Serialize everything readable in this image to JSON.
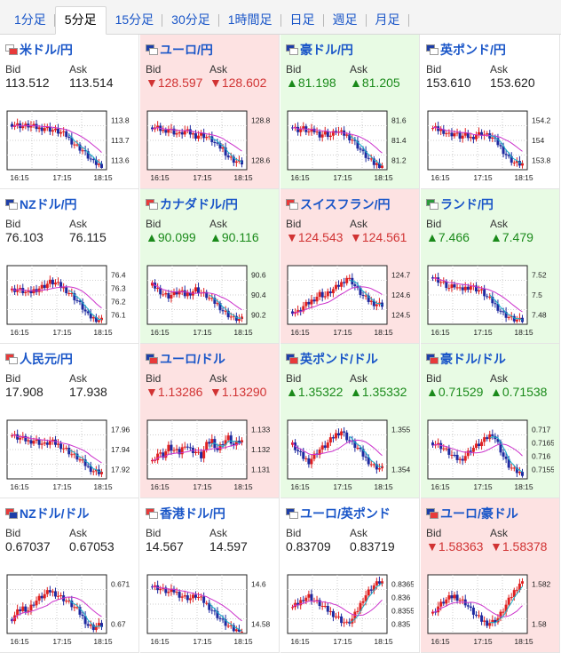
{
  "tabs": [
    "1分足",
    "5分足",
    "15分足",
    "30分足",
    "1時間足",
    "日足",
    "週足",
    "月足"
  ],
  "active_tab": 1,
  "labels": {
    "bid": "Bid",
    "ask": "Ask"
  },
  "x_ticks": [
    "16:15",
    "17:15",
    "18:15"
  ],
  "colors": {
    "up": "#1a8a1a",
    "down": "#d13333",
    "candle_up": "#e02020",
    "candle_down": "#1e2aa0",
    "ma_slow": "#cc33cc",
    "ma_fast": "#19b3c8"
  },
  "pairs": [
    {
      "name": "米ドル/円",
      "dir": "neutral",
      "bid": "113.512",
      "ask": "113.514",
      "arrow": "",
      "flags": [
        "#ffffff",
        "#e83a3a"
      ],
      "yticks": [
        "113.8",
        "113.7",
        "113.6"
      ],
      "ylim": [
        113.5,
        113.9
      ]
    },
    {
      "name": "ユーロ/円",
      "dir": "down",
      "bid": "128.597",
      "ask": "128.602",
      "arrow": "▼",
      "flags": [
        "#1e3fa8",
        "#ffffff"
      ],
      "yticks": [
        "128.8",
        "128.6"
      ],
      "ylim": [
        128.55,
        128.95
      ]
    },
    {
      "name": "豪ドル/円",
      "dir": "up",
      "bid": "81.198",
      "ask": "81.205",
      "arrow": "▲",
      "flags": [
        "#1e3fa8",
        "#ffffff"
      ],
      "yticks": [
        "81.6",
        "81.4",
        "81.2"
      ],
      "ylim": [
        81.15,
        81.7
      ]
    },
    {
      "name": "英ポンド/円",
      "dir": "neutral",
      "bid": "153.610",
      "ask": "153.620",
      "arrow": "",
      "flags": [
        "#1e3fa8",
        "#ffffff"
      ],
      "yticks": [
        "154.2",
        "154",
        "153.8"
      ],
      "ylim": [
        153.55,
        154.3
      ]
    },
    {
      "name": "NZドル/円",
      "dir": "neutral",
      "bid": "76.103",
      "ask": "76.115",
      "arrow": "",
      "flags": [
        "#1e3fa8",
        "#ffffff"
      ],
      "yticks": [
        "76.4",
        "76.3",
        "76.2",
        "76.1"
      ],
      "ylim": [
        76.05,
        76.45
      ]
    },
    {
      "name": "カナダドル/円",
      "dir": "up",
      "bid": "90.099",
      "ask": "90.116",
      "arrow": "▲",
      "flags": [
        "#e83a3a",
        "#ffffff"
      ],
      "yticks": [
        "90.6",
        "90.4",
        "90.2"
      ],
      "ylim": [
        90.05,
        90.7
      ]
    },
    {
      "name": "スイスフラン/円",
      "dir": "down",
      "bid": "124.543",
      "ask": "124.561",
      "arrow": "▼",
      "flags": [
        "#e83a3a",
        "#ffffff"
      ],
      "yticks": [
        "124.7",
        "124.6",
        "124.5"
      ],
      "ylim": [
        124.45,
        124.75
      ]
    },
    {
      "name": "ランド/円",
      "dir": "up",
      "bid": "7.466",
      "ask": "7.479",
      "arrow": "▲",
      "flags": [
        "#2a9a3a",
        "#ffffff"
      ],
      "yticks": [
        "7.52",
        "7.5",
        "7.48"
      ],
      "ylim": [
        7.46,
        7.54
      ]
    },
    {
      "name": "人民元/円",
      "dir": "neutral",
      "bid": "17.908",
      "ask": "17.938",
      "arrow": "",
      "flags": [
        "#e83a3a",
        "#ffffff"
      ],
      "yticks": [
        "17.96",
        "17.94",
        "17.92"
      ],
      "ylim": [
        17.9,
        17.97
      ]
    },
    {
      "name": "ユーロ/ドル",
      "dir": "down",
      "bid": "1.13286",
      "ask": "1.13290",
      "arrow": "▼",
      "flags": [
        "#1e3fa8",
        "#e83a3a"
      ],
      "yticks": [
        "1.133",
        "1.132",
        "1.131"
      ],
      "ylim": [
        1.1307,
        1.1336
      ]
    },
    {
      "name": "英ポンド/ドル",
      "dir": "up",
      "bid": "1.35322",
      "ask": "1.35332",
      "arrow": "▲",
      "flags": [
        "#1e3fa8",
        "#e83a3a"
      ],
      "yticks": [
        "1.355",
        "1.354"
      ],
      "ylim": [
        1.353,
        1.356
      ]
    },
    {
      "name": "豪ドル/ドル",
      "dir": "up",
      "bid": "0.71529",
      "ask": "0.71538",
      "arrow": "▲",
      "flags": [
        "#1e3fa8",
        "#e83a3a"
      ],
      "yticks": [
        "0.717",
        "0.7165",
        "0.716",
        "0.7155"
      ],
      "ylim": [
        0.715,
        0.7172
      ]
    },
    {
      "name": "NZドル/ドル",
      "dir": "neutral",
      "bid": "0.67037",
      "ask": "0.67053",
      "arrow": "",
      "flags": [
        "#e83a3a",
        "#1e3fa8"
      ],
      "yticks": [
        "0.671",
        "0.67"
      ],
      "ylim": [
        0.6698,
        0.6716
      ]
    },
    {
      "name": "香港ドル/円",
      "dir": "neutral",
      "bid": "14.567",
      "ask": "14.597",
      "arrow": "",
      "flags": [
        "#e83a3a",
        "#ffffff"
      ],
      "yticks": [
        "14.6",
        "14.58"
      ],
      "ylim": [
        14.565,
        14.615
      ]
    },
    {
      "name": "ユーロ/英ポンド",
      "dir": "neutral",
      "bid": "0.83709",
      "ask": "0.83719",
      "arrow": "",
      "flags": [
        "#1e3fa8",
        "#ffffff"
      ],
      "yticks": [
        "0.8365",
        "0.836",
        "0.8355",
        "0.835"
      ],
      "ylim": [
        0.8349,
        0.8368
      ]
    },
    {
      "name": "ユーロ/豪ドル",
      "dir": "down",
      "bid": "1.58363",
      "ask": "1.58378",
      "arrow": "▼",
      "flags": [
        "#1e3fa8",
        "#e83a3a"
      ],
      "yticks": [
        "1.582",
        "1.58"
      ],
      "ylim": [
        1.579,
        1.5835
      ]
    }
  ],
  "chart_data": [
    {
      "type": "candlestick",
      "pair": "米ドル/円",
      "x_ticks": [
        "16:15",
        "17:15",
        "18:15"
      ],
      "y_ticks": [
        113.8,
        113.7,
        113.6
      ],
      "shape": [
        0.78,
        0.76,
        0.74,
        0.75,
        0.73,
        0.7,
        0.72,
        0.69,
        0.66,
        0.63,
        0.58,
        0.48,
        0.4,
        0.33,
        0.22,
        0.12,
        0.08
      ]
    },
    {
      "type": "candlestick",
      "pair": "ユーロ/円",
      "x_ticks": [
        "16:15",
        "17:15",
        "18:15"
      ],
      "y_ticks": [
        128.8,
        128.6
      ],
      "shape": [
        0.72,
        0.7,
        0.66,
        0.7,
        0.64,
        0.6,
        0.66,
        0.62,
        0.58,
        0.6,
        0.56,
        0.5,
        0.4,
        0.36,
        0.22,
        0.16,
        0.12
      ]
    },
    {
      "type": "candlestick",
      "pair": "豪ドル/円",
      "x_ticks": [
        "16:15",
        "17:15",
        "18:15"
      ],
      "y_ticks": [
        81.6,
        81.4,
        81.2
      ],
      "shape": [
        0.72,
        0.68,
        0.7,
        0.64,
        0.66,
        0.6,
        0.62,
        0.58,
        0.66,
        0.62,
        0.58,
        0.52,
        0.4,
        0.28,
        0.18,
        0.1,
        0.08
      ]
    },
    {
      "type": "candlestick",
      "pair": "英ポンド/円",
      "x_ticks": [
        "16:15",
        "17:15",
        "18:15"
      ],
      "y_ticks": [
        154.2,
        154,
        153.8
      ],
      "shape": [
        0.7,
        0.68,
        0.66,
        0.6,
        0.62,
        0.56,
        0.58,
        0.54,
        0.6,
        0.62,
        0.58,
        0.54,
        0.44,
        0.32,
        0.2,
        0.12,
        0.1
      ]
    },
    {
      "type": "candlestick",
      "pair": "NZドル/円",
      "x_ticks": [
        "16:15",
        "17:15",
        "18:15"
      ],
      "y_ticks": [
        76.4,
        76.3,
        76.2,
        76.1
      ],
      "shape": [
        0.58,
        0.6,
        0.56,
        0.52,
        0.58,
        0.62,
        0.66,
        0.72,
        0.7,
        0.64,
        0.58,
        0.5,
        0.4,
        0.28,
        0.14,
        0.1,
        0.08
      ]
    },
    {
      "type": "candlestick",
      "pair": "カナダドル/円",
      "x_ticks": [
        "16:15",
        "17:15",
        "18:15"
      ],
      "y_ticks": [
        90.6,
        90.4,
        90.2
      ],
      "shape": [
        0.66,
        0.6,
        0.52,
        0.48,
        0.52,
        0.56,
        0.5,
        0.54,
        0.6,
        0.54,
        0.48,
        0.4,
        0.34,
        0.24,
        0.16,
        0.1,
        0.08
      ]
    },
    {
      "type": "candlestick",
      "pair": "スイスフラン/円",
      "x_ticks": [
        "16:15",
        "17:15",
        "18:15"
      ],
      "y_ticks": [
        124.7,
        124.6,
        124.5
      ],
      "shape": [
        0.22,
        0.2,
        0.3,
        0.36,
        0.44,
        0.52,
        0.48,
        0.56,
        0.62,
        0.7,
        0.8,
        0.72,
        0.58,
        0.48,
        0.4,
        0.36,
        0.34
      ]
    },
    {
      "type": "candlestick",
      "pair": "ランド/円",
      "x_ticks": [
        "16:15",
        "17:15",
        "18:15"
      ],
      "y_ticks": [
        7.52,
        7.5,
        7.48
      ],
      "shape": [
        0.8,
        0.76,
        0.7,
        0.62,
        0.66,
        0.58,
        0.62,
        0.66,
        0.6,
        0.56,
        0.46,
        0.38,
        0.28,
        0.18,
        0.12,
        0.08,
        0.06
      ]
    },
    {
      "type": "candlestick",
      "pair": "人民元/円",
      "x_ticks": [
        "16:15",
        "17:15",
        "18:15"
      ],
      "y_ticks": [
        17.96,
        17.94,
        17.92
      ],
      "shape": [
        0.74,
        0.7,
        0.68,
        0.64,
        0.66,
        0.62,
        0.58,
        0.64,
        0.6,
        0.56,
        0.5,
        0.42,
        0.36,
        0.28,
        0.2,
        0.14,
        0.12
      ]
    },
    {
      "type": "candlestick",
      "pair": "ユーロ/ドル",
      "x_ticks": [
        "16:15",
        "17:15",
        "18:15"
      ],
      "y_ticks": [
        1.133,
        1.132,
        1.131
      ],
      "shape": [
        0.3,
        0.44,
        0.4,
        0.54,
        0.48,
        0.44,
        0.6,
        0.5,
        0.46,
        0.38,
        0.58,
        0.66,
        0.5,
        0.62,
        0.7,
        0.56,
        0.64
      ]
    },
    {
      "type": "candlestick",
      "pair": "英ポンド/ドル",
      "x_ticks": [
        "16:15",
        "17:15",
        "18:15"
      ],
      "y_ticks": [
        1.355,
        1.354
      ],
      "shape": [
        0.58,
        0.46,
        0.36,
        0.3,
        0.4,
        0.5,
        0.56,
        0.66,
        0.76,
        0.82,
        0.7,
        0.6,
        0.52,
        0.4,
        0.3,
        0.22,
        0.18
      ]
    },
    {
      "type": "candlestick",
      "pair": "豪ドル/ドル",
      "x_ticks": [
        "16:15",
        "17:15",
        "18:15"
      ],
      "y_ticks": [
        0.717,
        0.7165,
        0.716,
        0.7155
      ],
      "shape": [
        0.62,
        0.58,
        0.52,
        0.44,
        0.36,
        0.32,
        0.4,
        0.5,
        0.56,
        0.62,
        0.7,
        0.78,
        0.6,
        0.38,
        0.22,
        0.14,
        0.1
      ]
    },
    {
      "type": "candlestick",
      "pair": "NZドル/ドル",
      "x_ticks": [
        "16:15",
        "17:15",
        "18:15"
      ],
      "y_ticks": [
        0.671,
        0.67
      ],
      "shape": [
        0.24,
        0.36,
        0.44,
        0.4,
        0.52,
        0.6,
        0.66,
        0.72,
        0.68,
        0.62,
        0.56,
        0.48,
        0.4,
        0.28,
        0.14,
        0.1,
        0.14
      ]
    },
    {
      "type": "candlestick",
      "pair": "香港ドル/円",
      "x_ticks": [
        "16:15",
        "17:15",
        "18:15"
      ],
      "y_ticks": [
        14.6,
        14.58
      ],
      "shape": [
        0.8,
        0.78,
        0.74,
        0.7,
        0.72,
        0.66,
        0.62,
        0.6,
        0.64,
        0.58,
        0.5,
        0.4,
        0.3,
        0.2,
        0.12,
        0.06,
        0.04
      ]
    },
    {
      "type": "candlestick",
      "pair": "ユーロ/英ポンド",
      "x_ticks": [
        "16:15",
        "17:15",
        "18:15"
      ],
      "y_ticks": [
        0.8365,
        0.836,
        0.8355,
        0.835
      ],
      "shape": [
        0.44,
        0.5,
        0.6,
        0.64,
        0.56,
        0.5,
        0.42,
        0.36,
        0.3,
        0.22,
        0.16,
        0.24,
        0.4,
        0.6,
        0.72,
        0.82,
        0.88
      ]
    },
    {
      "type": "candlestick",
      "pair": "ユーロ/豪ドル",
      "x_ticks": [
        "16:15",
        "17:15",
        "18:15"
      ],
      "y_ticks": [
        1.582,
        1.58
      ],
      "shape": [
        0.34,
        0.46,
        0.54,
        0.6,
        0.64,
        0.58,
        0.52,
        0.4,
        0.3,
        0.22,
        0.18,
        0.2,
        0.26,
        0.4,
        0.56,
        0.72,
        0.86
      ]
    }
  ]
}
